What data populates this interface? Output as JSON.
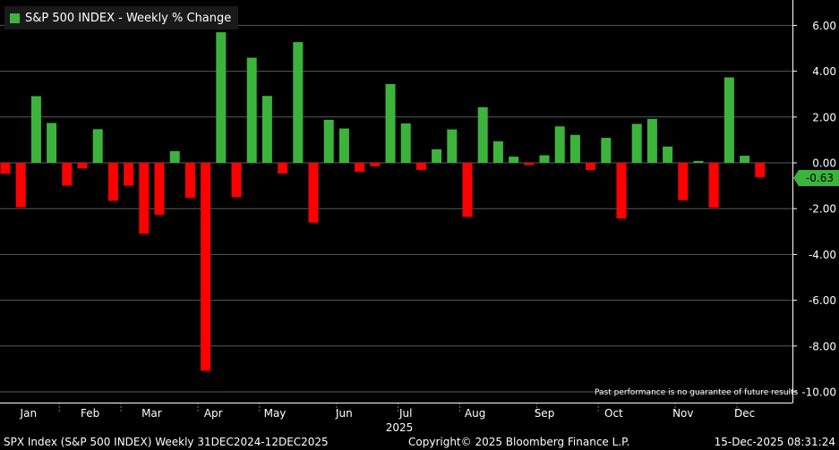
{
  "colors": {
    "positive": "#3cb43c",
    "negative": "#ff0000",
    "grid": "#5a5a5a",
    "tag": "#3cb43c"
  },
  "legend": {
    "label": "S&P 500 INDEX - Weekly % Change"
  },
  "disclaimer": "Past performance is no guarantee of future results",
  "footer": {
    "left": "SPX Index (S&P 500 INDEX) Weekly 31DEC2024-12DEC2025",
    "middle": "Copyright© 2025 Bloomberg Finance L.P.",
    "right": "15-Dec-2025 08:31:24"
  },
  "last_value_tag": "-0.63",
  "chart_data": {
    "type": "bar",
    "title": "S&P 500 INDEX - Weekly % Change",
    "xlabel": "2025",
    "ylabel": "",
    "ylim": [
      -10,
      7
    ],
    "yticks": [
      6,
      4,
      2,
      0,
      -2,
      -4,
      -6,
      -8,
      -10
    ],
    "ytick_labels": [
      "6.00",
      "4.00",
      "2.00",
      "0.00",
      "-2.00",
      "-4.00",
      "-6.00",
      "-8.00",
      "-10.00"
    ],
    "month_labels": [
      "Jan",
      "Feb",
      "Mar",
      "Apr",
      "May",
      "Jun",
      "Jul",
      "Aug",
      "Sep",
      "Oct",
      "Nov",
      "Dec"
    ],
    "month_week_index": [
      1.5,
      5.5,
      9.5,
      13.5,
      17.5,
      22,
      26,
      30.5,
      35,
      39.5,
      44,
      48
    ],
    "year_label": "2025",
    "weeks": [
      "2025-01-03",
      "2025-01-10",
      "2025-01-17",
      "2025-01-24",
      "2025-01-31",
      "2025-02-07",
      "2025-02-14",
      "2025-02-21",
      "2025-02-28",
      "2025-03-07",
      "2025-03-14",
      "2025-03-21",
      "2025-03-28",
      "2025-04-04",
      "2025-04-11",
      "2025-04-17",
      "2025-04-25",
      "2025-05-02",
      "2025-05-09",
      "2025-05-16",
      "2025-05-23",
      "2025-05-30",
      "2025-06-06",
      "2025-06-13",
      "2025-06-20",
      "2025-06-27",
      "2025-07-03",
      "2025-07-11",
      "2025-07-18",
      "2025-07-25",
      "2025-08-01",
      "2025-08-08",
      "2025-08-15",
      "2025-08-22",
      "2025-08-29",
      "2025-09-05",
      "2025-09-12",
      "2025-09-19",
      "2025-09-26",
      "2025-10-03",
      "2025-10-10",
      "2025-10-17",
      "2025-10-24",
      "2025-10-31",
      "2025-11-07",
      "2025-11-14",
      "2025-11-21",
      "2025-11-28",
      "2025-12-05",
      "2025-12-12"
    ],
    "values": [
      -0.48,
      -1.94,
      2.91,
      1.74,
      -1.0,
      -0.24,
      1.47,
      -1.66,
      -1.0,
      -3.1,
      -2.27,
      0.51,
      -1.53,
      -9.08,
      5.7,
      -1.5,
      4.59,
      2.92,
      -0.47,
      5.27,
      -2.61,
      1.88,
      1.5,
      -0.39,
      -0.15,
      3.44,
      1.72,
      -0.31,
      0.59,
      1.46,
      -2.36,
      2.43,
      0.94,
      0.27,
      -0.1,
      0.33,
      1.59,
      1.22,
      -0.31,
      1.09,
      -2.43,
      1.7,
      1.92,
      0.71,
      -1.63,
      0.08,
      -1.95,
      3.73,
      0.31,
      -0.63
    ]
  }
}
